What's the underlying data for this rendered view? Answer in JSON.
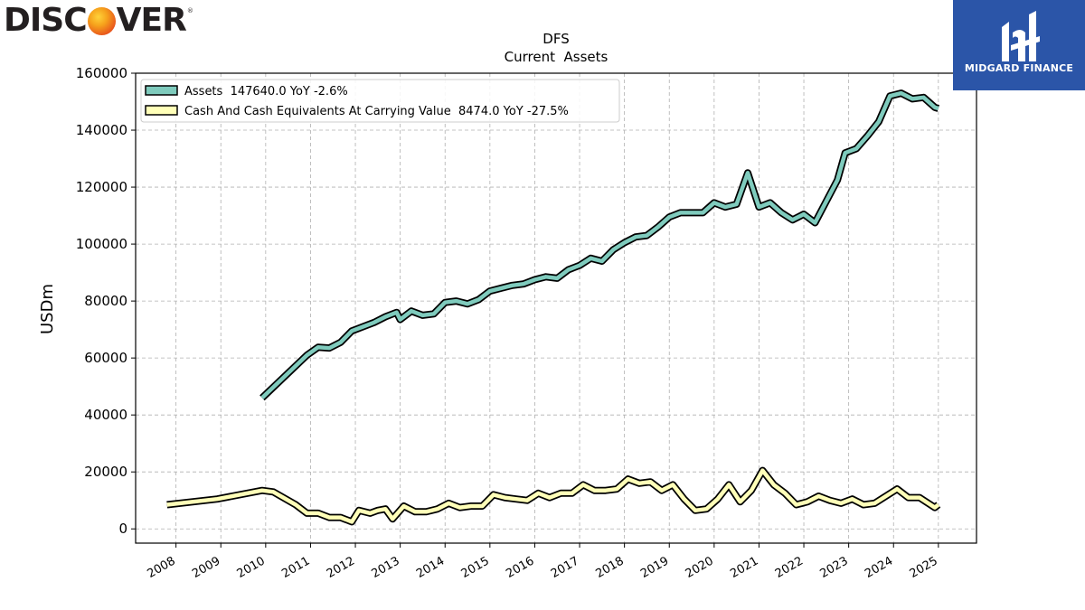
{
  "header": {
    "left_logo_text_1": "DISC",
    "left_logo_text_2": "VER",
    "left_logo_reg": "®",
    "right_logo_text": "MIDGARD FINANCE"
  },
  "colors": {
    "assets": "#7fcbbd",
    "cash": "#ffffb8",
    "outline": "#000000",
    "grid": "#b0b0b0",
    "logo_bg": "#2b55a8"
  },
  "chart_data": {
    "type": "line",
    "title": "DFS",
    "subtitle": "Current  Assets",
    "xlabel": "",
    "ylabel": "USDm",
    "xlim": [
      2007.1,
      2025.85
    ],
    "ylim": [
      -5000,
      160000
    ],
    "grid": true,
    "legend_position": "top-left",
    "x_ticks": [
      2008,
      2009,
      2010,
      2011,
      2012,
      2013,
      2014,
      2015,
      2016,
      2017,
      2018,
      2019,
      2020,
      2021,
      2022,
      2023,
      2024,
      2025
    ],
    "y_ticks": [
      0,
      20000,
      40000,
      60000,
      80000,
      100000,
      120000,
      140000,
      160000
    ],
    "series": [
      {
        "name": "Assets",
        "legend_label": "Assets  147640.0 YoY -2.6%",
        "color": "#7fcbbd",
        "points": [
          [
            2009.92,
            46000
          ],
          [
            2010.92,
            61000
          ],
          [
            2011.17,
            63800
          ],
          [
            2011.42,
            63500
          ],
          [
            2011.67,
            65500
          ],
          [
            2011.92,
            69500
          ],
          [
            2012.17,
            71000
          ],
          [
            2012.42,
            72500
          ],
          [
            2012.67,
            74500
          ],
          [
            2012.92,
            76000
          ],
          [
            2013.0,
            73500
          ],
          [
            2013.25,
            76500
          ],
          [
            2013.5,
            75000
          ],
          [
            2013.75,
            75500
          ],
          [
            2014.0,
            79500
          ],
          [
            2014.25,
            80000
          ],
          [
            2014.5,
            79000
          ],
          [
            2014.75,
            80500
          ],
          [
            2015.0,
            83500
          ],
          [
            2015.25,
            84500
          ],
          [
            2015.5,
            85500
          ],
          [
            2015.75,
            86000
          ],
          [
            2016.0,
            87500
          ],
          [
            2016.25,
            88500
          ],
          [
            2016.5,
            88000
          ],
          [
            2016.75,
            91000
          ],
          [
            2017.0,
            92500
          ],
          [
            2017.25,
            95000
          ],
          [
            2017.5,
            94000
          ],
          [
            2017.75,
            98000
          ],
          [
            2018.0,
            100500
          ],
          [
            2018.25,
            102500
          ],
          [
            2018.5,
            103000
          ],
          [
            2018.75,
            106000
          ],
          [
            2019.0,
            109500
          ],
          [
            2019.25,
            111000
          ],
          [
            2019.5,
            111000
          ],
          [
            2019.75,
            111000
          ],
          [
            2020.0,
            114500
          ],
          [
            2020.25,
            113000
          ],
          [
            2020.5,
            114000
          ],
          [
            2020.75,
            125000
          ],
          [
            2021.0,
            113000
          ],
          [
            2021.25,
            114500
          ],
          [
            2021.5,
            111000
          ],
          [
            2021.75,
            108500
          ],
          [
            2022.0,
            110500
          ],
          [
            2022.25,
            107500
          ],
          [
            2022.5,
            115000
          ],
          [
            2022.75,
            122500
          ],
          [
            2022.92,
            132000
          ],
          [
            2023.17,
            133500
          ],
          [
            2023.42,
            138000
          ],
          [
            2023.67,
            143000
          ],
          [
            2023.92,
            152000
          ],
          [
            2024.17,
            153000
          ],
          [
            2024.42,
            151000
          ],
          [
            2024.67,
            151500
          ],
          [
            2024.92,
            148000
          ],
          [
            2025.0,
            147640
          ]
        ]
      },
      {
        "name": "Cash And Cash Equivalents At Carrying Value",
        "legend_label": "Cash And Cash Equivalents At Carrying Value  8474.0 YoY -27.5%",
        "color": "#ffffb8",
        "points": [
          [
            2007.8,
            8500
          ],
          [
            2008.92,
            10500
          ],
          [
            2009.92,
            13500
          ],
          [
            2010.17,
            13000
          ],
          [
            2010.67,
            8500
          ],
          [
            2010.92,
            5500
          ],
          [
            2011.17,
            5500
          ],
          [
            2011.42,
            4000
          ],
          [
            2011.67,
            4000
          ],
          [
            2011.92,
            2500
          ],
          [
            2012.08,
            6500
          ],
          [
            2012.33,
            5500
          ],
          [
            2012.5,
            6500
          ],
          [
            2012.67,
            7000
          ],
          [
            2012.83,
            3500
          ],
          [
            2013.08,
            8000
          ],
          [
            2013.33,
            6000
          ],
          [
            2013.58,
            6000
          ],
          [
            2013.83,
            7000
          ],
          [
            2014.08,
            9000
          ],
          [
            2014.33,
            7500
          ],
          [
            2014.58,
            8000
          ],
          [
            2014.83,
            8000
          ],
          [
            2015.08,
            12000
          ],
          [
            2015.33,
            11000
          ],
          [
            2015.58,
            10500
          ],
          [
            2015.83,
            10000
          ],
          [
            2016.08,
            12500
          ],
          [
            2016.33,
            11000
          ],
          [
            2016.58,
            12500
          ],
          [
            2016.83,
            12500
          ],
          [
            2017.08,
            15500
          ],
          [
            2017.33,
            13500
          ],
          [
            2017.58,
            13500
          ],
          [
            2017.83,
            14000
          ],
          [
            2018.08,
            17500
          ],
          [
            2018.33,
            16000
          ],
          [
            2018.58,
            16500
          ],
          [
            2018.83,
            13500
          ],
          [
            2019.08,
            15500
          ],
          [
            2019.33,
            10500
          ],
          [
            2019.58,
            6500
          ],
          [
            2019.83,
            7000
          ],
          [
            2020.08,
            10500
          ],
          [
            2020.33,
            15500
          ],
          [
            2020.58,
            9500
          ],
          [
            2020.83,
            13500
          ],
          [
            2021.08,
            20500
          ],
          [
            2021.33,
            15500
          ],
          [
            2021.58,
            12500
          ],
          [
            2021.83,
            8500
          ],
          [
            2022.08,
            9500
          ],
          [
            2022.33,
            11500
          ],
          [
            2022.58,
            10000
          ],
          [
            2022.83,
            9000
          ],
          [
            2023.08,
            10500
          ],
          [
            2023.33,
            8500
          ],
          [
            2023.58,
            9000
          ],
          [
            2023.83,
            11500
          ],
          [
            2024.08,
            14000
          ],
          [
            2024.33,
            11000
          ],
          [
            2024.58,
            11000
          ],
          [
            2024.92,
            7500
          ],
          [
            2025.0,
            8474
          ]
        ]
      }
    ]
  }
}
